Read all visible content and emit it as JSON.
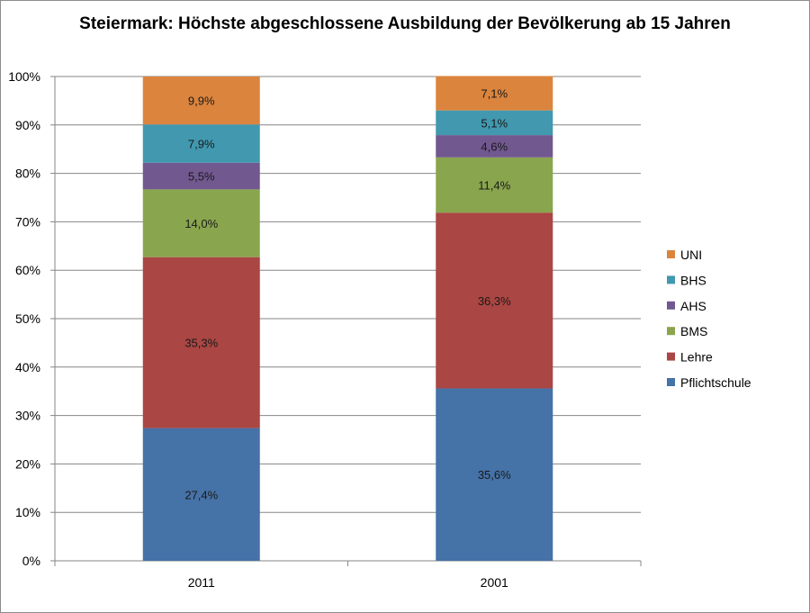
{
  "chart_data": {
    "type": "bar",
    "stacked": true,
    "percent_stacked": true,
    "title": "Steiermark: Höchste abgeschlossene Ausbildung der Bevölkerung ab 15 Jahren",
    "categories": [
      "2011",
      "2001"
    ],
    "series": [
      {
        "name": "Pflichtschule",
        "values": [
          27.4,
          35.6
        ],
        "labels": [
          "27,4%",
          "35,6%"
        ],
        "color": "#4572a7"
      },
      {
        "name": "Lehre",
        "values": [
          35.3,
          36.3
        ],
        "labels": [
          "35,3%",
          "36,3%"
        ],
        "color": "#aa4643"
      },
      {
        "name": "BMS",
        "values": [
          14.0,
          11.4
        ],
        "labels": [
          "14,0%",
          "11,4%"
        ],
        "color": "#89a54e"
      },
      {
        "name": "AHS",
        "values": [
          5.5,
          4.6
        ],
        "labels": [
          "5,5%",
          "4,6%"
        ],
        "color": "#71588f"
      },
      {
        "name": "BHS",
        "values": [
          7.9,
          5.1
        ],
        "labels": [
          "7,9%",
          "5,1%"
        ],
        "color": "#4198af"
      },
      {
        "name": "UNI",
        "values": [
          9.9,
          7.1
        ],
        "labels": [
          "9,9%",
          "7,1%"
        ],
        "color": "#db843d"
      }
    ],
    "ylim": [
      0,
      100
    ],
    "yticks": [
      "0%",
      "10%",
      "20%",
      "30%",
      "40%",
      "50%",
      "60%",
      "70%",
      "80%",
      "90%",
      "100%"
    ],
    "grid": true,
    "legend_position": "right",
    "legend_order": [
      "UNI",
      "BHS",
      "AHS",
      "BMS",
      "Lehre",
      "Pflichtschule"
    ]
  }
}
